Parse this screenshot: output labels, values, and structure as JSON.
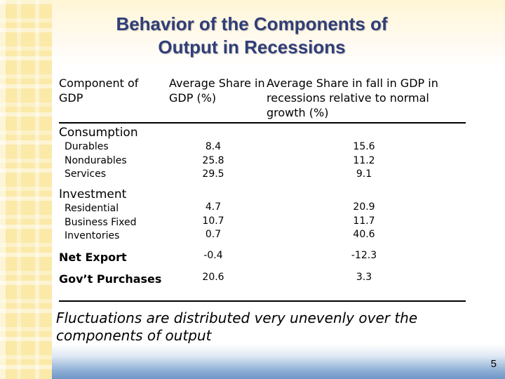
{
  "slide": {
    "title_line1": "Behavior of the Components of",
    "title_line2": "Output in Recessions",
    "headers": {
      "col1": "Component of GDP",
      "col2": "Average Share in GDP (%)",
      "col3": "Average Share in fall in GDP in recessions relative to normal growth (%)"
    },
    "groups": [
      {
        "label": "Consumption",
        "items": [
          {
            "name": "Durables",
            "share": "8.4",
            "fall": "15.6"
          },
          {
            "name": "Nondurables",
            "share": "25.8",
            "fall": "11.2"
          },
          {
            "name": "Services",
            "share": "29.5",
            "fall": "9.1"
          }
        ]
      },
      {
        "label": "Investment",
        "items": [
          {
            "name": "Residential",
            "share": "4.7",
            "fall": "20.9"
          },
          {
            "name": "Business Fixed",
            "share": "10.7",
            "fall": "11.7"
          },
          {
            "name": "Inventories",
            "share": "0.7",
            "fall": "40.6"
          }
        ]
      }
    ],
    "rows": [
      {
        "label": "Net Export",
        "share": "-0.4",
        "fall": "-12.3"
      },
      {
        "label": "Gov’t Purchases",
        "share": "20.6",
        "fall": "3.3"
      }
    ],
    "footnote": "Fluctuations are distributed very unevenly over the components of output",
    "page_number": "5"
  },
  "colors": {
    "title": "#303e78",
    "strip": "#fbe9a8",
    "bottom_band": "#6f97c8"
  }
}
